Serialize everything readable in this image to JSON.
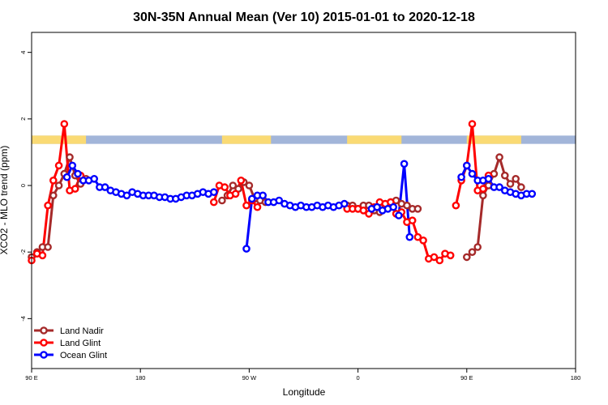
{
  "chart_data": {
    "type": "line",
    "title": "30N-35N Annual Mean (Ver 10)   2015-01-01 to 2020-12-18",
    "xlabel": "Longitude",
    "ylabel": "XCO2 - MLO trend (ppm)",
    "xlim": [
      0,
      1
    ],
    "ylim": [
      -5.5,
      4.6
    ],
    "x_ticks": [
      {
        "value": 0,
        "label": "90 E"
      },
      {
        "value": 0.2,
        "label": "180"
      },
      {
        "value": 0.4,
        "label": "90 W"
      },
      {
        "value": 0.6,
        "label": "0"
      },
      {
        "value": 0.8,
        "label": "90 E"
      },
      {
        "value": 1.0,
        "label": "180"
      }
    ],
    "y_ticks": [
      -4,
      -2,
      0,
      2,
      4
    ],
    "grid": false,
    "legend_position": "bottom-left",
    "land_ocean_band": {
      "y_min": 1.25,
      "y_max": 1.5,
      "land_color": "#FADA74",
      "ocean_color": "#A2B5D9",
      "land_segments": [
        [
          0,
          0.1
        ],
        [
          0.35,
          0.44
        ],
        [
          0.58,
          0.68
        ],
        [
          0.8,
          0.9
        ]
      ]
    },
    "series": [
      {
        "name": "Land Nadir",
        "color": "#A52A2A",
        "segments": [
          [
            [
              0.0,
              -2.15
            ],
            [
              0.01,
              -2.0
            ],
            [
              0.02,
              -1.85
            ],
            [
              0.03,
              -1.85
            ],
            [
              0.04,
              -0.3
            ],
            [
              0.05,
              0.0
            ],
            [
              0.06,
              0.35
            ],
            [
              0.07,
              0.85
            ],
            [
              0.08,
              0.3
            ],
            [
              0.09,
              0.05
            ],
            [
              0.1,
              0.2
            ]
          ],
          [
            [
              0.35,
              -0.45
            ],
            [
              0.36,
              -0.3
            ],
            [
              0.37,
              0.0
            ],
            [
              0.38,
              -0.1
            ],
            [
              0.39,
              0.1
            ],
            [
              0.4,
              0.0
            ],
            [
              0.41,
              -0.4
            ],
            [
              0.42,
              -0.45
            ],
            [
              0.43,
              -0.5
            ]
          ],
          [
            [
              0.58,
              -0.6
            ],
            [
              0.59,
              -0.6
            ],
            [
              0.6,
              -0.7
            ],
            [
              0.61,
              -0.6
            ],
            [
              0.62,
              -0.6
            ],
            [
              0.63,
              -0.75
            ],
            [
              0.64,
              -0.8
            ],
            [
              0.65,
              -0.6
            ],
            [
              0.66,
              -0.5
            ],
            [
              0.67,
              -0.45
            ],
            [
              0.68,
              -0.55
            ],
            [
              0.69,
              -0.6
            ],
            [
              0.7,
              -0.7
            ],
            [
              0.71,
              -0.7
            ]
          ],
          [
            [
              0.8,
              -2.15
            ],
            [
              0.81,
              -2.0
            ],
            [
              0.82,
              -1.85
            ],
            [
              0.83,
              -0.3
            ],
            [
              0.84,
              0.0
            ],
            [
              0.85,
              0.35
            ],
            [
              0.86,
              0.85
            ],
            [
              0.87,
              0.3
            ],
            [
              0.88,
              0.05
            ],
            [
              0.89,
              0.2
            ],
            [
              0.9,
              -0.05
            ]
          ]
        ]
      },
      {
        "name": "Land Glint",
        "color": "#FF0000",
        "segments": [
          [
            [
              0.0,
              -2.25
            ],
            [
              0.01,
              -2.05
            ],
            [
              0.02,
              -2.1
            ],
            [
              0.03,
              -0.6
            ],
            [
              0.04,
              0.15
            ],
            [
              0.05,
              0.6
            ],
            [
              0.06,
              1.85
            ],
            [
              0.07,
              -0.15
            ],
            [
              0.08,
              -0.1
            ],
            [
              0.09,
              0.3
            ]
          ],
          [
            [
              0.335,
              -0.5
            ],
            [
              0.345,
              0.0
            ],
            [
              0.355,
              -0.05
            ],
            [
              0.365,
              -0.3
            ],
            [
              0.375,
              -0.25
            ],
            [
              0.385,
              0.15
            ],
            [
              0.395,
              -0.6
            ],
            [
              0.405,
              -0.45
            ],
            [
              0.415,
              -0.65
            ]
          ],
          [
            [
              0.58,
              -0.7
            ],
            [
              0.59,
              -0.7
            ],
            [
              0.6,
              -0.7
            ],
            [
              0.61,
              -0.75
            ],
            [
              0.62,
              -0.85
            ],
            [
              0.63,
              -0.65
            ],
            [
              0.64,
              -0.5
            ],
            [
              0.65,
              -0.55
            ],
            [
              0.66,
              -0.5
            ],
            [
              0.67,
              -0.85
            ],
            [
              0.68,
              -0.8
            ],
            [
              0.69,
              -1.1
            ],
            [
              0.7,
              -1.05
            ],
            [
              0.71,
              -1.55
            ],
            [
              0.72,
              -1.65
            ],
            [
              0.73,
              -2.2
            ],
            [
              0.74,
              -2.15
            ],
            [
              0.75,
              -2.25
            ],
            [
              0.76,
              -2.05
            ],
            [
              0.77,
              -2.1
            ]
          ],
          [
            [
              0.78,
              -0.6
            ],
            [
              0.79,
              0.15
            ],
            [
              0.8,
              0.6
            ],
            [
              0.81,
              1.85
            ],
            [
              0.82,
              -0.15
            ],
            [
              0.83,
              -0.1
            ],
            [
              0.84,
              0.3
            ]
          ]
        ]
      },
      {
        "name": "Ocean Glint",
        "color": "#0000FF",
        "segments": [
          [
            [
              0.065,
              0.25
            ],
            [
              0.075,
              0.6
            ],
            [
              0.085,
              0.35
            ],
            [
              0.095,
              0.15
            ],
            [
              0.105,
              0.15
            ],
            [
              0.115,
              0.2
            ],
            [
              0.125,
              -0.05
            ],
            [
              0.135,
              -0.05
            ],
            [
              0.145,
              -0.15
            ],
            [
              0.155,
              -0.2
            ],
            [
              0.165,
              -0.25
            ],
            [
              0.175,
              -0.3
            ],
            [
              0.185,
              -0.2
            ],
            [
              0.195,
              -0.25
            ],
            [
              0.205,
              -0.3
            ],
            [
              0.215,
              -0.3
            ],
            [
              0.225,
              -0.3
            ],
            [
              0.235,
              -0.35
            ],
            [
              0.245,
              -0.35
            ],
            [
              0.255,
              -0.4
            ],
            [
              0.265,
              -0.4
            ],
            [
              0.275,
              -0.35
            ],
            [
              0.285,
              -0.3
            ],
            [
              0.295,
              -0.3
            ],
            [
              0.305,
              -0.25
            ],
            [
              0.315,
              -0.2
            ],
            [
              0.325,
              -0.25
            ],
            [
              0.335,
              -0.2
            ]
          ],
          [
            [
              0.395,
              -1.9
            ],
            [
              0.405,
              -0.4
            ],
            [
              0.415,
              -0.3
            ],
            [
              0.425,
              -0.3
            ],
            [
              0.435,
              -0.5
            ],
            [
              0.445,
              -0.5
            ],
            [
              0.455,
              -0.45
            ],
            [
              0.465,
              -0.55
            ],
            [
              0.475,
              -0.6
            ],
            [
              0.485,
              -0.65
            ],
            [
              0.495,
              -0.6
            ],
            [
              0.505,
              -0.65
            ],
            [
              0.515,
              -0.65
            ],
            [
              0.525,
              -0.6
            ],
            [
              0.535,
              -0.65
            ],
            [
              0.545,
              -0.6
            ],
            [
              0.555,
              -0.65
            ],
            [
              0.565,
              -0.6
            ],
            [
              0.575,
              -0.55
            ]
          ],
          [
            [
              0.625,
              -0.7
            ],
            [
              0.635,
              -0.65
            ],
            [
              0.645,
              -0.75
            ],
            [
              0.655,
              -0.7
            ],
            [
              0.665,
              -0.65
            ],
            [
              0.675,
              -0.9
            ],
            [
              0.685,
              0.65
            ],
            [
              0.695,
              -1.55
            ]
          ],
          [
            [
              0.79,
              0.25
            ],
            [
              0.8,
              0.6
            ],
            [
              0.81,
              0.35
            ],
            [
              0.82,
              0.15
            ],
            [
              0.83,
              0.15
            ],
            [
              0.84,
              0.2
            ],
            [
              0.85,
              -0.05
            ],
            [
              0.86,
              -0.05
            ],
            [
              0.87,
              -0.15
            ],
            [
              0.88,
              -0.2
            ],
            [
              0.89,
              -0.25
            ],
            [
              0.9,
              -0.3
            ],
            [
              0.91,
              -0.25
            ],
            [
              0.92,
              -0.25
            ]
          ]
        ]
      }
    ]
  }
}
